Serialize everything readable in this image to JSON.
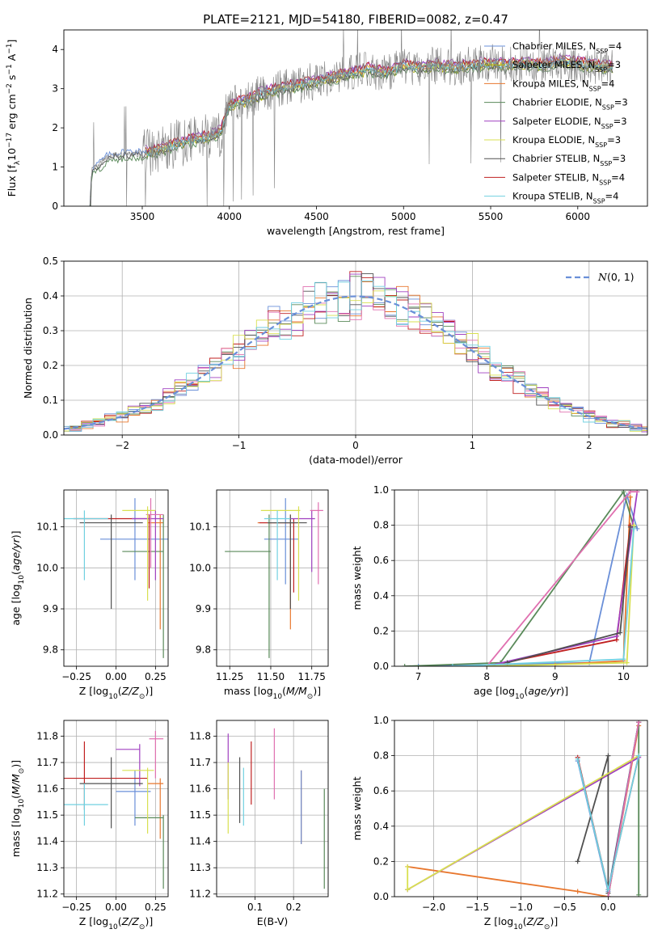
{
  "figure": {
    "title": "PLATE=2121, MJD=54180, FIBERID=0082, z=0.47"
  },
  "chart_data": [
    {
      "id": "spectrum",
      "type": "line",
      "xlabel": "wavelength [Angstrom, rest frame]",
      "ylabel": "Flux [f_λ 10^-17 erg cm^-2 s^-1 A^-1]",
      "xlim": [
        3050,
        6400
      ],
      "ylim": [
        0,
        4.5
      ],
      "xticks": [
        3500,
        4000,
        4500,
        5000,
        5500,
        6000
      ],
      "yticks": [
        0,
        1,
        2,
        3,
        4
      ],
      "grid": false,
      "legend_position": "top-right",
      "data_color": "#808080",
      "continuum": {
        "x": [
          3200,
          3210,
          3300,
          3400,
          3500,
          3600,
          3700,
          3800,
          3900,
          3950,
          4000,
          4100,
          4200,
          4300,
          4400,
          4500,
          4600,
          4700,
          4800,
          4900,
          5000,
          5100,
          5200,
          5300,
          5400,
          5500,
          5600,
          5700,
          5800,
          5900,
          6000,
          6100,
          6200
        ],
        "y": [
          0,
          0.9,
          1.25,
          1.35,
          1.35,
          1.45,
          1.6,
          1.7,
          1.8,
          1.9,
          2.6,
          2.7,
          2.9,
          3.0,
          3.1,
          3.2,
          3.3,
          3.4,
          3.5,
          3.4,
          3.6,
          3.55,
          3.6,
          3.55,
          3.6,
          3.65,
          3.6,
          3.65,
          3.6,
          3.7,
          3.65,
          3.6,
          3.55
        ]
      },
      "series": [
        {
          "name": "Chabrier MILES, N_SSP=4",
          "color": "#6a8fd8"
        },
        {
          "name": "Salpeter MILES, N_SSP=3",
          "color": "#b0b000"
        },
        {
          "name": "Kroupa MILES, N_SSP=4",
          "color": "#e8772e"
        },
        {
          "name": "Chabrier ELODIE, N_SSP=3",
          "color": "#5a8a5a"
        },
        {
          "name": "Salpeter ELODIE, N_SSP=3",
          "color": "#a040c0"
        },
        {
          "name": "Kroupa ELODIE, N_SSP=3",
          "color": "#d8e050"
        },
        {
          "name": "Chabrier STELIB, N_SSP=3",
          "color": "#505050"
        },
        {
          "name": "Salpeter STELIB, N_SSP=4",
          "color": "#c02020"
        },
        {
          "name": "Kroupa STELIB, N_SSP=4",
          "color": "#70d0e0"
        }
      ]
    },
    {
      "id": "residuals",
      "type": "line",
      "xlabel": "(data-model)/error",
      "ylabel": "Normed distribution",
      "xlim": [
        -2.5,
        2.5
      ],
      "ylim": [
        0,
        0.5
      ],
      "xticks": [
        -2,
        -1,
        0,
        1,
        2
      ],
      "yticks": [
        0.0,
        0.1,
        0.2,
        0.3,
        0.4,
        0.5
      ],
      "grid": true,
      "legend_position": "top-right",
      "legend": [
        {
          "name": "N(0,1)",
          "color": "#6a8fd8",
          "style": "dashed"
        }
      ],
      "histogram_colors": [
        "#6a8fd8",
        "#e8772e",
        "#5a8a5a",
        "#c02020",
        "#a040c0",
        "#505050",
        "#e070b0",
        "#d8e050",
        "#70d0e0"
      ]
    },
    {
      "id": "age_vs_Z",
      "type": "scatter",
      "xlabel": "Z [log10(Z/Z_sun)]",
      "ylabel": "age  [log10(age/yr)]",
      "xlim": [
        -0.33,
        0.33
      ],
      "ylim": [
        9.76,
        10.19
      ],
      "xticks": [
        -0.25,
        0.0,
        0.25
      ],
      "yticks": [
        9.8,
        9.9,
        10.0,
        10.1
      ],
      "grid": true,
      "errorbars": [
        {
          "color": "#6a8fd8",
          "x": 0.12,
          "y": 10.07,
          "xerr": [
            0.22,
            0.22
          ],
          "yerr": [
            0.1,
            0.1
          ]
        },
        {
          "color": "#e8772e",
          "x": 0.28,
          "y": 10.11,
          "xerr": [
            0.08,
            0.02
          ],
          "yerr": [
            0.26,
            0.02
          ]
        },
        {
          "color": "#5a8a5a",
          "x": 0.3,
          "y": 10.04,
          "xerr": [
            0.26,
            0.0
          ],
          "yerr": [
            0.26,
            0.09
          ]
        },
        {
          "color": "#c02020",
          "x": 0.21,
          "y": 10.12,
          "xerr": [
            0.48,
            0.01
          ],
          "yerr": [
            0.17,
            0.01
          ]
        },
        {
          "color": "#a040c0",
          "x": 0.25,
          "y": 10.12,
          "xerr": [
            0.15,
            0.05
          ],
          "yerr": [
            0.15,
            0.02
          ]
        },
        {
          "color": "#505050",
          "x": -0.03,
          "y": 10.11,
          "xerr": [
            0.2,
            0.2
          ],
          "yerr": [
            0.21,
            0.02
          ]
        },
        {
          "color": "#e070b0",
          "x": 0.22,
          "y": 10.13,
          "xerr": [
            0.03,
            0.08
          ],
          "yerr": [
            0.13,
            0.04
          ]
        },
        {
          "color": "#d8e050",
          "x": 0.2,
          "y": 10.14,
          "xerr": [
            0.16,
            0.05
          ],
          "yerr": [
            0.22,
            0.01
          ]
        },
        {
          "color": "#70d0e0",
          "x": -0.2,
          "y": 10.12,
          "xerr": [
            0.13,
            0.15
          ],
          "yerr": [
            0.15,
            0.02
          ]
        }
      ]
    },
    {
      "id": "age_vs_mass",
      "type": "scatter",
      "xlabel": "mass [log10(M/M_sun)]",
      "ylabel": "",
      "xlim": [
        11.17,
        11.85
      ],
      "ylim": [
        9.76,
        10.19
      ],
      "xticks": [
        11.25,
        11.5,
        11.75
      ],
      "yticks": [
        9.8,
        9.9,
        10.0,
        10.1
      ],
      "grid": true,
      "errorbars": [
        {
          "color": "#6a8fd8",
          "x": 11.59,
          "y": 10.07,
          "xerr": [
            0.13,
            0.08
          ],
          "yerr": [
            0.11,
            0.1
          ]
        },
        {
          "color": "#e8772e",
          "x": 11.62,
          "y": 10.11,
          "xerr": [
            0.2,
            0.02
          ],
          "yerr": [
            0.26,
            0.02
          ]
        },
        {
          "color": "#5a8a5a",
          "x": 11.49,
          "y": 10.04,
          "xerr": [
            0.27,
            0.01
          ],
          "yerr": [
            0.26,
            0.09
          ]
        },
        {
          "color": "#c02020",
          "x": 11.64,
          "y": 10.11,
          "xerr": [
            0.21,
            0.02
          ],
          "yerr": [
            0.17,
            0.01
          ]
        },
        {
          "color": "#a040c0",
          "x": 11.75,
          "y": 10.12,
          "xerr": [
            0.14,
            0.02
          ],
          "yerr": [
            0.13,
            0.02
          ]
        },
        {
          "color": "#505050",
          "x": 11.62,
          "y": 10.11,
          "xerr": [
            0.14,
            0.1
          ],
          "yerr": [
            0.21,
            0.02
          ]
        },
        {
          "color": "#e070b0",
          "x": 11.79,
          "y": 10.14,
          "xerr": [
            0.05,
            0.03
          ],
          "yerr": [
            0.18,
            0.02
          ]
        },
        {
          "color": "#d8e050",
          "x": 11.67,
          "y": 10.14,
          "xerr": [
            0.23,
            0.01
          ],
          "yerr": [
            0.22,
            0.01
          ]
        },
        {
          "color": "#70d0e0",
          "x": 11.54,
          "y": 10.12,
          "xerr": [
            0.08,
            0.08
          ],
          "yerr": [
            0.15,
            0.02
          ]
        }
      ]
    },
    {
      "id": "mass_weight_vs_age",
      "type": "line",
      "xlabel": "age  [log10(age/yr)]",
      "ylabel": "mass weight",
      "xlim": [
        6.65,
        10.35
      ],
      "ylim": [
        0.0,
        1.0
      ],
      "xticks": [
        7,
        8,
        9,
        10
      ],
      "yticks": [
        0.0,
        0.2,
        0.4,
        0.6,
        0.8,
        1.0
      ],
      "grid": true,
      "series": [
        {
          "color": "#6a8fd8",
          "x": [
            7.0,
            9.5,
            10.05,
            10.2
          ],
          "y": [
            0.0,
            0.02,
            0.97,
            0.78
          ]
        },
        {
          "color": "#e8772e",
          "x": [
            9.0,
            10.0,
            10.1
          ],
          "y": [
            0.01,
            0.03,
            0.96
          ]
        },
        {
          "color": "#5a8a5a",
          "x": [
            6.8,
            8.2,
            10.0,
            10.15
          ],
          "y": [
            0.0,
            0.02,
            0.99,
            0.79
          ]
        },
        {
          "color": "#c02020",
          "x": [
            8.0,
            9.9,
            10.1
          ],
          "y": [
            0.0,
            0.15,
            0.8
          ]
        },
        {
          "color": "#a040c0",
          "x": [
            8.0,
            9.9,
            10.2
          ],
          "y": [
            0.0,
            0.17,
            0.99
          ]
        },
        {
          "color": "#505050",
          "x": [
            8.3,
            9.95,
            10.1
          ],
          "y": [
            0.02,
            0.19,
            0.79
          ]
        },
        {
          "color": "#e070b0",
          "x": [
            8.0,
            10.1,
            10.2
          ],
          "y": [
            0.0,
            0.99,
            0.99
          ]
        },
        {
          "color": "#d8e050",
          "x": [
            8.0,
            10.05,
            10.15
          ],
          "y": [
            0.0,
            0.02,
            0.8
          ]
        },
        {
          "color": "#70d0e0",
          "x": [
            7.5,
            10.0,
            10.15
          ],
          "y": [
            0.0,
            0.04,
            0.78
          ]
        }
      ]
    },
    {
      "id": "mass_vs_Z",
      "type": "scatter",
      "xlabel": "Z [log10(Z/Z_sun)]",
      "ylabel": "mass [log10(M/M_sun)]",
      "xlim": [
        -0.33,
        0.33
      ],
      "ylim": [
        11.19,
        11.86
      ],
      "xticks": [
        -0.25,
        0.0,
        0.25
      ],
      "yticks": [
        11.2,
        11.3,
        11.4,
        11.5,
        11.6,
        11.7,
        11.8
      ],
      "grid": true,
      "errorbars": [
        {
          "color": "#6a8fd8",
          "x": 0.12,
          "y": 11.59,
          "xerr": [
            0.12,
            0.1
          ],
          "yerr": [
            0.13,
            0.08
          ]
        },
        {
          "color": "#e8772e",
          "x": 0.28,
          "y": 11.62,
          "xerr": [
            0.08,
            0.02
          ],
          "yerr": [
            0.21,
            0.02
          ]
        },
        {
          "color": "#5a8a5a",
          "x": 0.3,
          "y": 11.49,
          "xerr": [
            0.18,
            0.0
          ],
          "yerr": [
            0.27,
            0.01
          ]
        },
        {
          "color": "#c02020",
          "x": -0.2,
          "y": 11.64,
          "xerr": [
            0.4,
            0.4
          ],
          "yerr": [
            0.12,
            0.14
          ]
        },
        {
          "color": "#a040c0",
          "x": 0.15,
          "y": 11.75,
          "xerr": [
            0.15,
            0.0
          ],
          "yerr": [
            0.14,
            0.02
          ]
        },
        {
          "color": "#505050",
          "x": -0.03,
          "y": 11.62,
          "xerr": [
            0.2,
            0.2
          ],
          "yerr": [
            0.17,
            0.1
          ]
        },
        {
          "color": "#e070b0",
          "x": 0.25,
          "y": 11.79,
          "xerr": [
            0.04,
            0.05
          ],
          "yerr": [
            0.15,
            0.03
          ]
        },
        {
          "color": "#d8e050",
          "x": 0.2,
          "y": 11.67,
          "xerr": [
            0.16,
            0.04
          ],
          "yerr": [
            0.24,
            0.01
          ]
        },
        {
          "color": "#70d0e0",
          "x": -0.2,
          "y": 11.54,
          "xerr": [
            0.13,
            0.15
          ],
          "yerr": [
            0.08,
            0.08
          ]
        }
      ]
    },
    {
      "id": "mass_vs_ebv",
      "type": "scatter",
      "xlabel": "E(B-V)",
      "ylabel": "",
      "xlim": [
        0.0,
        0.29
      ],
      "ylim": [
        11.19,
        11.86
      ],
      "xticks": [
        0.1,
        0.2
      ],
      "yticks": [
        11.2,
        11.3,
        11.4,
        11.5,
        11.6,
        11.7,
        11.8
      ],
      "grid": true,
      "errorbars": [
        {
          "color": "#a040c0",
          "x": 0.03,
          "y": 11.7,
          "yerr": [
            0.14,
            0.11
          ]
        },
        {
          "color": "#d8e050",
          "x": 0.03,
          "y": 11.6,
          "yerr": [
            0.17,
            0.1
          ]
        },
        {
          "color": "#505050",
          "x": 0.06,
          "y": 11.6,
          "yerr": [
            0.13,
            0.12
          ]
        },
        {
          "color": "#70d0e0",
          "x": 0.07,
          "y": 11.6,
          "yerr": [
            0.14,
            0.08
          ]
        },
        {
          "color": "#c02020",
          "x": 0.09,
          "y": 11.65,
          "yerr": [
            0.11,
            0.13
          ]
        },
        {
          "color": "#e070b0",
          "x": 0.15,
          "y": 11.7,
          "yerr": [
            0.14,
            0.13
          ]
        },
        {
          "color": "#e8772e",
          "x": 0.22,
          "y": 11.53,
          "yerr": [
            0.14,
            0.14
          ]
        },
        {
          "color": "#6a8fd8",
          "x": 0.22,
          "y": 11.53,
          "yerr": [
            0.14,
            0.14
          ]
        },
        {
          "color": "#5a8a5a",
          "x": 0.28,
          "y": 11.4,
          "yerr": [
            0.18,
            0.2
          ]
        }
      ]
    },
    {
      "id": "mass_weight_vs_Z",
      "type": "line",
      "xlabel": "Z [log10(Z/Z_sun)]",
      "ylabel": "mass weight",
      "xlim": [
        -2.45,
        0.45
      ],
      "ylim": [
        0.0,
        1.0
      ],
      "xticks": [
        -2.0,
        -1.5,
        -1.0,
        -0.5,
        0.0
      ],
      "yticks": [
        0.0,
        0.2,
        0.4,
        0.6,
        0.8,
        1.0
      ],
      "grid": true,
      "series": [
        {
          "color": "#6a8fd8",
          "x": [
            -0.35,
            0.0,
            0.35
          ],
          "y": [
            0.77,
            0.03,
            0.99
          ]
        },
        {
          "color": "#e8772e",
          "x": [
            -2.3,
            -0.35,
            0.0,
            0.35
          ],
          "y": [
            0.17,
            0.03,
            0.0,
            0.97
          ]
        },
        {
          "color": "#5a8a5a",
          "x": [
            0.0,
            0.35,
            0.35
          ],
          "y": [
            0.0,
            0.99,
            0.01
          ]
        },
        {
          "color": "#c02020",
          "x": [
            -0.35,
            0.0,
            0.35
          ],
          "y": [
            0.79,
            0.04,
            0.8
          ]
        },
        {
          "color": "#a040c0",
          "x": [
            -2.3,
            0.35
          ],
          "y": [
            0.04,
            0.79
          ]
        },
        {
          "color": "#505050",
          "x": [
            -0.35,
            0.0,
            0.0,
            0.35
          ],
          "y": [
            0.2,
            0.8,
            0.02,
            0.99
          ]
        },
        {
          "color": "#e070b0",
          "x": [
            0.0,
            0.35
          ],
          "y": [
            0.0,
            0.99
          ]
        },
        {
          "color": "#d8e050",
          "x": [
            -2.3,
            -2.3,
            0.35
          ],
          "y": [
            0.17,
            0.04,
            0.8
          ]
        },
        {
          "color": "#70d0e0",
          "x": [
            -0.35,
            0.0,
            0.35
          ],
          "y": [
            0.78,
            0.04,
            0.8
          ]
        }
      ]
    }
  ]
}
